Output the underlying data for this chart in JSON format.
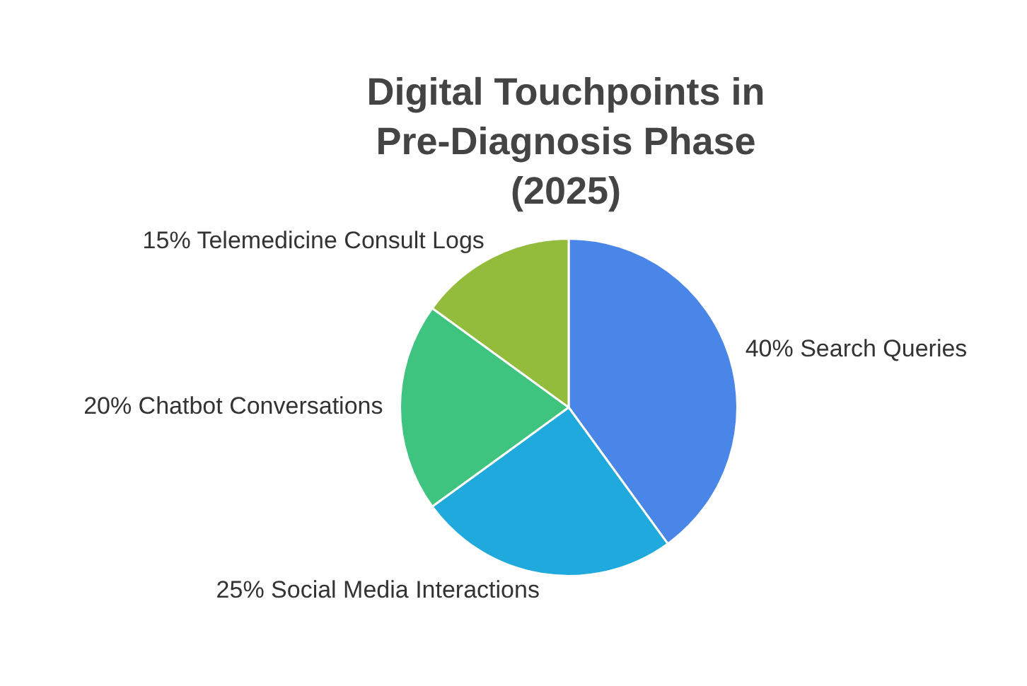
{
  "chart_data": {
    "type": "pie",
    "title": "Digital Touchpoints in Pre-Diagnosis Phase (2025)",
    "categories": [
      "Search Queries",
      "Social Media Interactions",
      "Chatbot Conversations",
      "Telemedicine Consult Logs"
    ],
    "values": [
      40,
      25,
      20,
      15
    ],
    "value_labels": [
      "40%",
      "25%",
      "20%",
      "15%"
    ],
    "colors": [
      "#4a86e8",
      "#1fa9dc",
      "#3ec47f",
      "#93bb3c"
    ],
    "legend": false
  }
}
